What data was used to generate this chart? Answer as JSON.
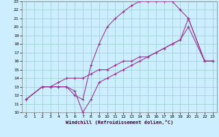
{
  "xlabel": "Windchill (Refroidissement éolien,°C)",
  "xlim": [
    -0.5,
    23.5
  ],
  "ylim": [
    10,
    23
  ],
  "xticks": [
    0,
    1,
    2,
    3,
    4,
    5,
    6,
    7,
    8,
    9,
    10,
    11,
    12,
    13,
    14,
    15,
    16,
    17,
    18,
    19,
    20,
    21,
    22,
    23
  ],
  "yticks": [
    10,
    11,
    12,
    13,
    14,
    15,
    16,
    17,
    18,
    19,
    20,
    21,
    22,
    23
  ],
  "bg_color": "#cceeff",
  "grid_color": "#99cccc",
  "line_color": "#993399",
  "curve1_x": [
    0,
    2,
    3,
    4,
    5,
    6,
    7,
    8,
    9,
    10,
    11,
    12,
    13,
    14,
    15,
    16,
    17,
    18,
    19,
    20,
    22,
    23
  ],
  "curve1_y": [
    11.5,
    13,
    13,
    13,
    13,
    12.0,
    11.5,
    15.5,
    18.0,
    20.0,
    21.0,
    21.8,
    22.5,
    23.0,
    23.0,
    23.0,
    23.0,
    23.0,
    22.0,
    21.0,
    16.0,
    16.0
  ],
  "curve2_x": [
    0,
    2,
    3,
    4,
    5,
    6,
    7,
    8,
    9,
    10,
    11,
    12,
    13,
    14,
    15,
    16,
    17,
    18,
    19,
    20,
    22,
    23
  ],
  "curve2_y": [
    11.5,
    13,
    13,
    13,
    13,
    12.5,
    10.0,
    11.5,
    13.5,
    14.0,
    14.5,
    15.0,
    15.5,
    16.0,
    16.5,
    17.0,
    17.5,
    18.0,
    18.5,
    21.0,
    16.0,
    16.0
  ],
  "curve3_x": [
    0,
    2,
    3,
    4,
    5,
    6,
    7,
    8,
    9,
    10,
    11,
    12,
    13,
    14,
    15,
    16,
    17,
    18,
    19,
    20,
    22,
    23
  ],
  "curve3_y": [
    11.5,
    13,
    13,
    13.5,
    14.0,
    14.0,
    14.0,
    14.5,
    15.0,
    15.0,
    15.5,
    16.0,
    16.0,
    16.5,
    16.5,
    17.0,
    17.5,
    18.0,
    18.5,
    20.0,
    16.0,
    16.0
  ],
  "tick_fontsize": 4.5,
  "xlabel_fontsize": 5.0,
  "lw": 0.8,
  "ms": 2.5
}
